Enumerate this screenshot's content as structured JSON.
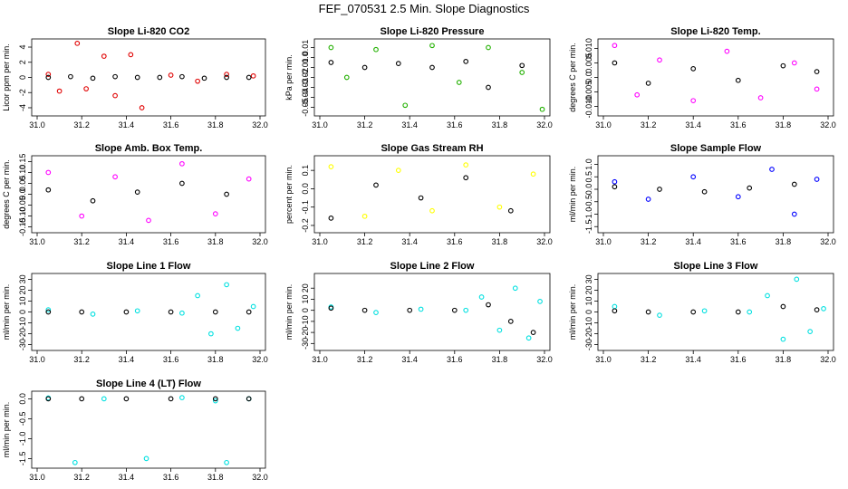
{
  "figure": {
    "title": "FEF_070531  2.5 Min. Slope Diagnostics"
  },
  "chart_data": [
    {
      "type": "scatter",
      "title": "Slope Li-820 CO2",
      "xlabel": "",
      "ylabel": "Licor ppm per min.",
      "xlim": [
        31.0,
        32.0
      ],
      "ylim": [
        -4.6,
        4.6
      ],
      "x_ticks": [
        "31.0",
        "31.2",
        "31.4",
        "31.6",
        "31.8",
        "32.0"
      ],
      "y_ticks": [
        "-4",
        "-2",
        "0",
        "2",
        "4"
      ],
      "color": "#e00000",
      "grid": false,
      "series": [
        {
          "x": [
            31.05,
            31.1,
            31.18,
            31.22,
            31.3,
            31.35,
            31.42,
            31.47,
            31.6,
            31.72,
            31.85,
            31.97
          ],
          "y": [
            0.4,
            -1.8,
            4.5,
            -1.5,
            2.8,
            -2.4,
            3.0,
            -4.0,
            0.3,
            -0.5,
            0.4,
            0.2
          ]
        },
        {
          "x": [
            31.05,
            31.15,
            31.25,
            31.35,
            31.45,
            31.55,
            31.65,
            31.75,
            31.85,
            31.95
          ],
          "y": [
            0.0,
            0.1,
            -0.1,
            0.1,
            0.0,
            0.0,
            0.1,
            -0.1,
            0.0,
            0.0
          ]
        }
      ]
    },
    {
      "type": "scatter",
      "title": "Slope Li-820 Pressure",
      "xlabel": "",
      "ylabel": "kPa per min.",
      "xlim": [
        31.0,
        32.0
      ],
      "ylim": [
        -0.055,
        0.015
      ],
      "x_ticks": [
        "31.0",
        "31.2",
        "31.4",
        "31.6",
        "31.8",
        "32.0"
      ],
      "y_ticks": [
        "-0.05",
        "-0.04",
        "-0.03",
        "-0.02",
        "-0.01",
        "0.0",
        "0.01"
      ],
      "color": "#22b000",
      "grid": false,
      "series": [
        {
          "x": [
            31.05,
            31.12,
            31.25,
            31.38,
            31.5,
            31.62,
            31.75,
            31.9,
            31.99
          ],
          "y": [
            0.01,
            -0.02,
            0.008,
            -0.048,
            0.012,
            -0.025,
            0.01,
            -0.015,
            -0.052
          ]
        },
        {
          "x": [
            31.05,
            31.2,
            31.35,
            31.5,
            31.65,
            31.75,
            31.9
          ],
          "y": [
            -0.005,
            -0.01,
            -0.006,
            -0.01,
            -0.004,
            -0.03,
            -0.008
          ]
        }
      ]
    },
    {
      "type": "scatter",
      "title": "Slope Li-820 Temp.",
      "xlabel": "",
      "ylabel": "degrees C per min.",
      "xlim": [
        31.0,
        32.0
      ],
      "ylim": [
        -0.012,
        0.012
      ],
      "x_ticks": [
        "31.0",
        "31.2",
        "31.4",
        "31.6",
        "31.8",
        "32.0"
      ],
      "y_ticks": [
        "-0.010",
        "-0.005",
        "0.0",
        "0.005",
        "0.010"
      ],
      "color": "#ff00ff",
      "grid": false,
      "series": [
        {
          "x": [
            31.05,
            31.15,
            31.25,
            31.4,
            31.55,
            31.7,
            31.85,
            31.95
          ],
          "y": [
            0.011,
            -0.006,
            0.006,
            -0.008,
            0.009,
            -0.007,
            0.005,
            -0.004
          ]
        },
        {
          "x": [
            31.05,
            31.2,
            31.4,
            31.6,
            31.8,
            31.95
          ],
          "y": [
            0.005,
            -0.002,
            0.003,
            -0.001,
            0.004,
            0.002
          ]
        }
      ]
    },
    {
      "type": "scatter",
      "title": "Slope Amb. Box Temp.",
      "xlabel": "",
      "ylabel": "degrees C per min.",
      "xlim": [
        31.0,
        32.0
      ],
      "ylim": [
        -0.16,
        0.16
      ],
      "x_ticks": [
        "31.0",
        "31.2",
        "31.4",
        "31.6",
        "31.8",
        "32.0"
      ],
      "y_ticks": [
        "-0.15",
        "-0.10",
        "-0.05",
        "0.0",
        "0.05",
        "0.10",
        "0.15"
      ],
      "color": "#ff00ff",
      "grid": false,
      "series": [
        {
          "x": [
            31.05,
            31.2,
            31.35,
            31.5,
            31.65,
            31.8,
            31.95
          ],
          "y": [
            0.1,
            -0.1,
            0.08,
            -0.12,
            0.14,
            -0.09,
            0.07
          ]
        },
        {
          "x": [
            31.05,
            31.25,
            31.45,
            31.65,
            31.85
          ],
          "y": [
            0.02,
            -0.03,
            0.01,
            0.05,
            0.0
          ]
        }
      ]
    },
    {
      "type": "scatter",
      "title": "Slope Gas Stream RH",
      "xlabel": "",
      "ylabel": "percent per min.",
      "xlim": [
        31.0,
        32.0
      ],
      "ylim": [
        -0.22,
        0.16
      ],
      "x_ticks": [
        "31.0",
        "31.2",
        "31.4",
        "31.6",
        "31.8",
        "32.0"
      ],
      "y_ticks": [
        "-0.2",
        "-0.1",
        "0.0",
        "0.1"
      ],
      "color": "#ffff00",
      "grid": false,
      "series": [
        {
          "x": [
            31.05,
            31.2,
            31.35,
            31.5,
            31.65,
            31.8,
            31.95
          ],
          "y": [
            0.12,
            -0.15,
            0.1,
            -0.12,
            0.13,
            -0.1,
            0.08
          ]
        },
        {
          "x": [
            31.05,
            31.25,
            31.45,
            31.65,
            31.85
          ],
          "y": [
            -0.16,
            0.02,
            -0.05,
            0.06,
            -0.12
          ]
        }
      ]
    },
    {
      "type": "scatter",
      "title": "Slope Sample Flow",
      "xlabel": "",
      "ylabel": "ml/min per min.",
      "xlim": [
        31.0,
        32.0
      ],
      "ylim": [
        -1.6,
        1.2
      ],
      "x_ticks": [
        "31.0",
        "31.2",
        "31.4",
        "31.6",
        "31.8",
        "32.0"
      ],
      "y_ticks": [
        "-1.5",
        "-1.0",
        "-0.5",
        "0.0",
        "0.5",
        "1.0"
      ],
      "color": "#0000ff",
      "grid": false,
      "series": [
        {
          "x": [
            31.05,
            31.2,
            31.4,
            31.6,
            31.75,
            31.85,
            31.95
          ],
          "y": [
            0.3,
            -0.4,
            0.5,
            -0.3,
            0.8,
            -1.0,
            0.4
          ]
        },
        {
          "x": [
            31.05,
            31.25,
            31.45,
            31.65,
            31.85
          ],
          "y": [
            0.1,
            0.0,
            -0.1,
            0.05,
            0.2
          ]
        }
      ]
    },
    {
      "type": "scatter",
      "title": "Slope Line 1 Flow",
      "xlabel": "",
      "ylabel": "ml/min per min.",
      "xlim": [
        31.0,
        32.0
      ],
      "ylim": [
        -32,
        32
      ],
      "x_ticks": [
        "31.0",
        "31.2",
        "31.4",
        "31.6",
        "31.8",
        "32.0"
      ],
      "y_ticks": [
        "-30",
        "-20",
        "-10",
        "0",
        "10",
        "20",
        "30"
      ],
      "color": "#00e0e0",
      "grid": false,
      "series": [
        {
          "x": [
            31.05,
            31.25,
            31.45,
            31.65,
            31.72,
            31.78,
            31.85,
            31.9,
            31.97
          ],
          "y": [
            2,
            -2,
            1,
            -1,
            15,
            -20,
            25,
            -15,
            5
          ]
        },
        {
          "x": [
            31.05,
            31.2,
            31.4,
            31.6,
            31.8,
            31.95
          ],
          "y": [
            0,
            0,
            0,
            0,
            0,
            0
          ]
        }
      ]
    },
    {
      "type": "scatter",
      "title": "Slope Line 2 Flow",
      "xlabel": "",
      "ylabel": "ml/min per min.",
      "xlim": [
        31.0,
        32.0
      ],
      "ylim": [
        -33,
        30
      ],
      "x_ticks": [
        "31.0",
        "31.2",
        "31.4",
        "31.6",
        "31.8",
        "32.0"
      ],
      "y_ticks": [
        "-30",
        "-20",
        "-10",
        "0",
        "10",
        "20"
      ],
      "color": "#00e0e0",
      "grid": false,
      "series": [
        {
          "x": [
            31.05,
            31.25,
            31.45,
            31.65,
            31.72,
            31.8,
            31.87,
            31.93,
            31.98
          ],
          "y": [
            3,
            -2,
            1,
            0,
            12,
            -18,
            20,
            -25,
            8
          ]
        },
        {
          "x": [
            31.05,
            31.2,
            31.4,
            31.6,
            31.75,
            31.85,
            31.95
          ],
          "y": [
            2,
            0,
            0,
            0,
            5,
            -10,
            -20
          ]
        }
      ]
    },
    {
      "type": "scatter",
      "title": "Slope Line 3 Flow",
      "xlabel": "",
      "ylabel": "ml/min per min.",
      "xlim": [
        31.0,
        32.0
      ],
      "ylim": [
        -32,
        32
      ],
      "x_ticks": [
        "31.0",
        "31.2",
        "31.4",
        "31.6",
        "31.8",
        "32.0"
      ],
      "y_ticks": [
        "-30",
        "-20",
        "-10",
        "0",
        "10",
        "20",
        "30"
      ],
      "color": "#00e0e0",
      "grid": false,
      "series": [
        {
          "x": [
            31.05,
            31.25,
            31.45,
            31.65,
            31.73,
            31.8,
            31.86,
            31.92,
            31.98
          ],
          "y": [
            5,
            -3,
            1,
            0,
            15,
            -25,
            30,
            -18,
            3
          ]
        },
        {
          "x": [
            31.05,
            31.2,
            31.4,
            31.6,
            31.8,
            31.95
          ],
          "y": [
            1,
            0,
            0,
            0,
            5,
            2
          ]
        }
      ]
    },
    {
      "type": "scatter",
      "title": "Slope Line 4 (LT) Flow",
      "xlabel": "",
      "ylabel": "ml/min per min.",
      "xlim": [
        31.0,
        32.0
      ],
      "ylim": [
        -1.65,
        0.1
      ],
      "x_ticks": [
        "31.0",
        "31.2",
        "31.4",
        "31.6",
        "31.8",
        "32.0"
      ],
      "y_ticks": [
        "-1.5",
        "-1.0",
        "-0.5",
        "0.0"
      ],
      "color": "#00e0e0",
      "grid": false,
      "series": [
        {
          "x": [
            31.05,
            31.17,
            31.3,
            31.49,
            31.65,
            31.8,
            31.85,
            31.95
          ],
          "y": [
            0.02,
            -1.6,
            0.0,
            -1.5,
            0.03,
            -0.05,
            -1.6,
            0.0
          ]
        },
        {
          "x": [
            31.05,
            31.2,
            31.4,
            31.6,
            31.8,
            31.95
          ],
          "y": [
            0.0,
            0.0,
            0.0,
            0.0,
            0.0,
            0.0
          ]
        }
      ]
    }
  ]
}
